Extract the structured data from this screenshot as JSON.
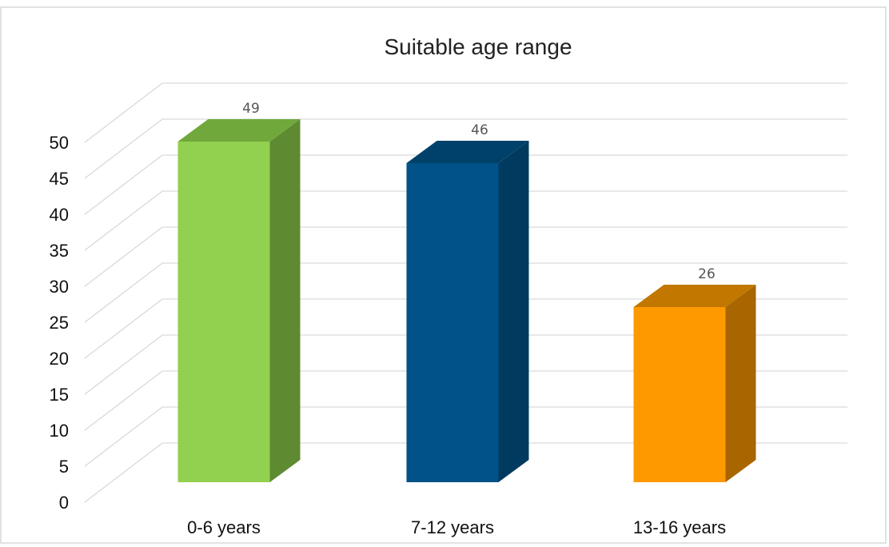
{
  "chart_data": {
    "type": "bar",
    "title": "Suitable age range",
    "xlabel": "",
    "ylabel": "",
    "categories": [
      "0-6 years",
      "7-12 years",
      "13-16 years"
    ],
    "values": [
      49,
      46,
      26
    ],
    "data_labels": [
      "49",
      "46",
      "26"
    ],
    "ylim": [
      0,
      50
    ],
    "yticks": [
      "0",
      "5",
      "10",
      "15",
      "20",
      "25",
      "30",
      "35",
      "40",
      "45",
      "50"
    ],
    "grid": true,
    "legend": "none",
    "style": "3d-column",
    "colors": [
      {
        "front": "#92d050",
        "side": "#5e8a32",
        "top": "#70a83c"
      },
      {
        "front": "#005288",
        "side": "#003a5e",
        "top": "#00416b"
      },
      {
        "front": "#ff9900",
        "side": "#a86500",
        "top": "#c27800"
      }
    ]
  }
}
